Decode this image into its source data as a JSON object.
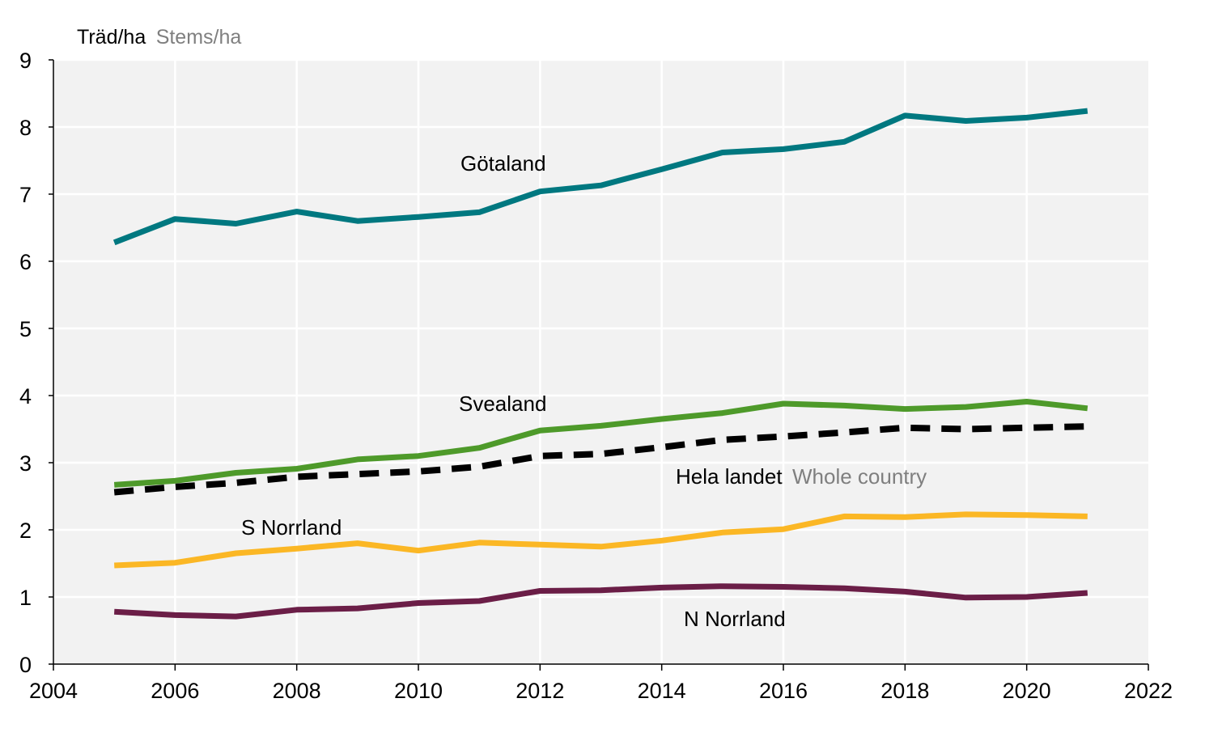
{
  "chart_data": {
    "type": "line",
    "ylabel": "Träd/ha",
    "ylabel_en": "Stems/ha",
    "xlim": [
      2004,
      2022
    ],
    "ylim": [
      0,
      9
    ],
    "x_ticks": [
      "2004",
      "2006",
      "2008",
      "2010",
      "2012",
      "2014",
      "2016",
      "2018",
      "2020",
      "2022"
    ],
    "y_ticks": [
      "0",
      "1",
      "2",
      "3",
      "4",
      "5",
      "6",
      "7",
      "8",
      "9"
    ],
    "grid": true,
    "background": "#f2f2f2",
    "x": [
      2005,
      2006,
      2007,
      2008,
      2009,
      2010,
      2011,
      2012,
      2013,
      2014,
      2015,
      2016,
      2017,
      2018,
      2019,
      2020,
      2021
    ],
    "series": [
      {
        "name": "Götaland",
        "color": "#007880",
        "dashed": false,
        "values": [
          6.28,
          6.63,
          6.56,
          6.74,
          6.6,
          6.66,
          6.73,
          7.04,
          7.13,
          7.37,
          7.62,
          7.67,
          7.78,
          8.17,
          8.09,
          8.14,
          8.24
        ]
      },
      {
        "name": "Svealand",
        "color": "#4e9a2a",
        "dashed": false,
        "values": [
          2.67,
          2.73,
          2.85,
          2.91,
          3.05,
          3.1,
          3.22,
          3.48,
          3.55,
          3.65,
          3.74,
          3.88,
          3.85,
          3.8,
          3.83,
          3.91,
          3.81
        ]
      },
      {
        "name": "Hela landet",
        "name_en": "Whole country",
        "color": "#000000",
        "dashed": true,
        "values": [
          2.56,
          2.64,
          2.7,
          2.79,
          2.83,
          2.87,
          2.94,
          3.1,
          3.13,
          3.23,
          3.34,
          3.39,
          3.45,
          3.52,
          3.5,
          3.52,
          3.54
        ]
      },
      {
        "name": "S Norrland",
        "color": "#fbb725",
        "dashed": false,
        "values": [
          1.47,
          1.51,
          1.65,
          1.72,
          1.8,
          1.69,
          1.81,
          1.78,
          1.75,
          1.84,
          1.96,
          2.01,
          2.2,
          2.19,
          2.23,
          2.22,
          2.2
        ]
      },
      {
        "name": "N Norrland",
        "color": "#6b1e47",
        "dashed": false,
        "values": [
          0.78,
          0.73,
          0.71,
          0.81,
          0.83,
          0.91,
          0.94,
          1.09,
          1.1,
          1.14,
          1.16,
          1.15,
          1.13,
          1.08,
          0.99,
          1.0,
          1.06
        ]
      }
    ]
  }
}
